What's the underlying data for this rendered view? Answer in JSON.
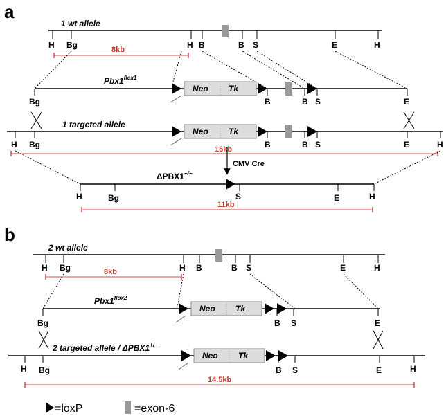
{
  "colors": {
    "line": "#000000",
    "size_bar": "#d44a4a",
    "box_fill": "#dcdcdc",
    "box_stroke": "#888888",
    "exon": "#9a9a9a"
  },
  "panel_a": {
    "letter": "a",
    "wt_allele": {
      "title": "1 wt allele",
      "sites": [
        "H",
        "Bg",
        "H",
        "B",
        "B",
        "S",
        "E",
        "H"
      ],
      "size": "8kb"
    },
    "flox_allele": {
      "title_base": "Pbx1",
      "title_sup": "flox1",
      "sites": [
        "Bg",
        "B",
        "B",
        "S",
        "E"
      ],
      "box_left": "Neo",
      "box_right": "Tk"
    },
    "targeted_allele": {
      "title": "1 targeted allele",
      "sites": [
        "H",
        "Bg",
        "B",
        "B",
        "S",
        "E",
        "H"
      ],
      "size": "16kb",
      "box_left": "Neo",
      "box_right": "Tk"
    },
    "cre_label": "CMV Cre",
    "deleted_allele": {
      "title": "ΔPBX1",
      "title_sup": "+/−",
      "sites": [
        "H",
        "Bg",
        "S",
        "E",
        "H"
      ],
      "size": "11kb"
    }
  },
  "panel_b": {
    "letter": "b",
    "wt_allele": {
      "title": "2 wt allele",
      "sites": [
        "H",
        "Bg",
        "H",
        "B",
        "B",
        "S",
        "E",
        "H"
      ],
      "size": "8kb"
    },
    "flox_allele": {
      "title_base": "Pbx1",
      "title_sup": "flox2",
      "sites": [
        "Bg",
        "B",
        "S",
        "E"
      ],
      "box_left": "Neo",
      "box_right": "Tk"
    },
    "targeted_allele": {
      "title": "2 targeted allele / ΔPBX1",
      "title_sup": "+/−",
      "sites": [
        "H",
        "Bg",
        "B",
        "S",
        "E",
        "H"
      ],
      "size": "14.5kb",
      "box_left": "Neo",
      "box_right": "Tk"
    }
  },
  "legend": {
    "loxp": "=loxP",
    "exon": "=exon-6"
  }
}
